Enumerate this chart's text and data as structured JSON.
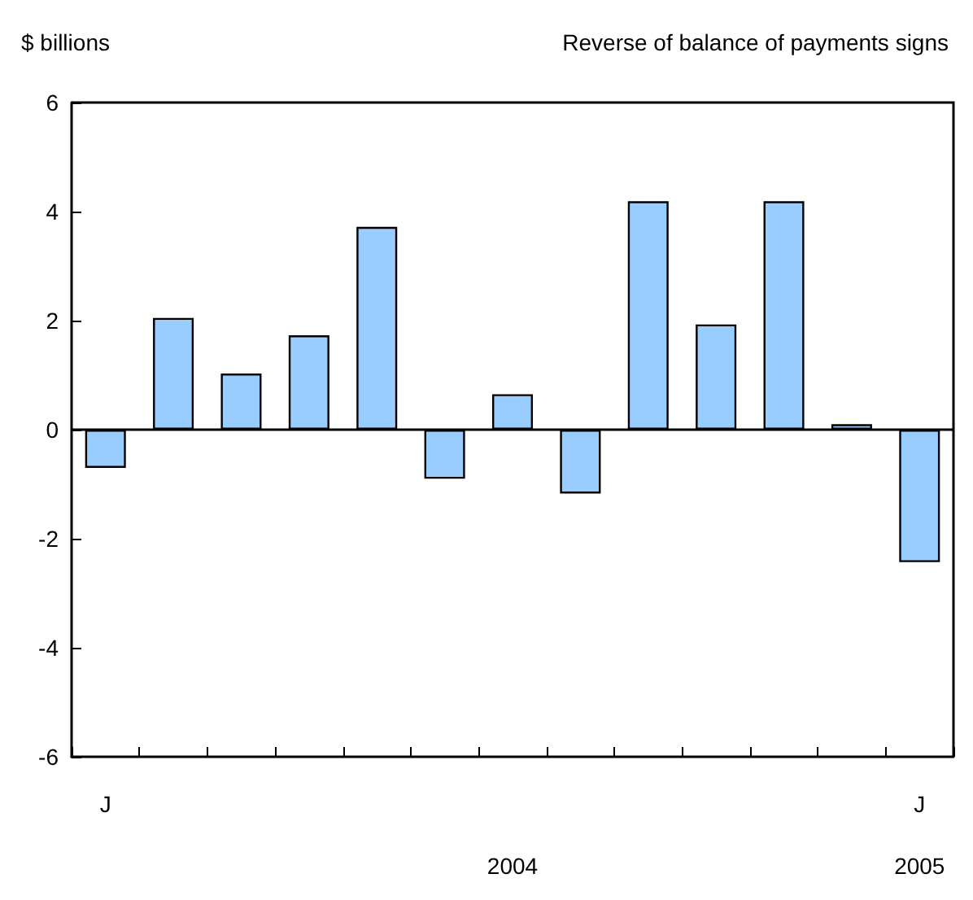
{
  "chart_data": {
    "type": "bar",
    "ylabel": "$ billions",
    "title": "Reverse of balance of payments signs",
    "categories": [
      "J",
      null,
      null,
      null,
      null,
      null,
      null,
      null,
      null,
      null,
      null,
      null,
      "J"
    ],
    "values": [
      -0.7,
      2.05,
      1.03,
      1.73,
      3.72,
      -0.9,
      0.65,
      -1.17,
      4.19,
      1.93,
      4.19,
      0.1,
      -2.43
    ],
    "color": "#99ccff",
    "ylim": [
      -6,
      6
    ],
    "yticks": [
      -6,
      -4,
      -2,
      0,
      2,
      4,
      6
    ],
    "grid": false,
    "ref_lines": [
      {
        "axis": "y",
        "value": 0,
        "color": "#000000",
        "line_style": "solid"
      }
    ],
    "annotations": [
      "2004",
      "2005"
    ]
  }
}
